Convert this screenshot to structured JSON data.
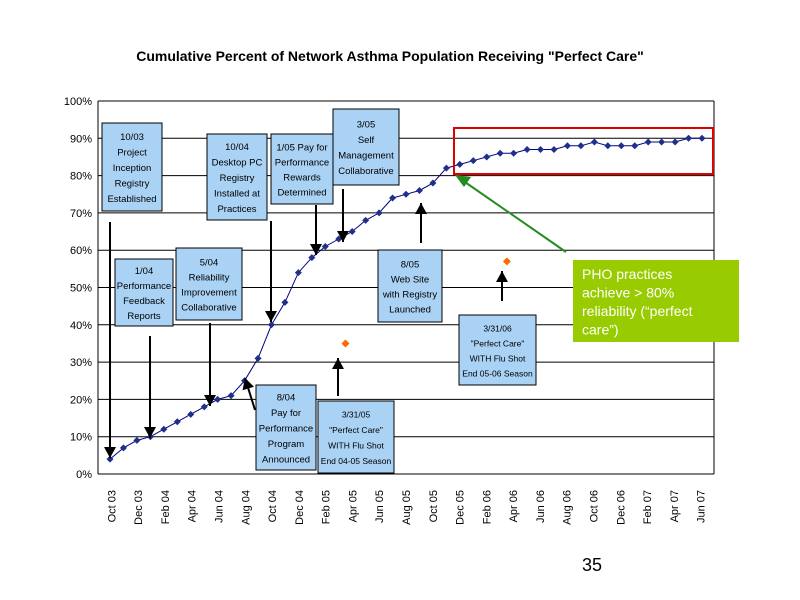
{
  "slide": {
    "page_number": "35"
  },
  "colors": {
    "line": "#00007f",
    "marker": "#1f2f8a",
    "flu_marker": "#ff6a00",
    "annotation_fill": "#a9d2f5",
    "callout_fill": "#99cc00",
    "highlight_box": "#e00000",
    "callout_arrow": "#228b22"
  },
  "chart_data": {
    "type": "line",
    "title": "Cumulative Percent of Network Asthma Population Receiving \"Perfect Care\"",
    "xlabel": "",
    "ylabel": "",
    "ylim": [
      0,
      100
    ],
    "y_ticks": [
      "0%",
      "10%",
      "20%",
      "30%",
      "40%",
      "50%",
      "60%",
      "70%",
      "80%",
      "90%",
      "100%"
    ],
    "x_ticks": [
      "Oct 03",
      "Dec 03",
      "Feb 04",
      "Apr 04",
      "Jun 04",
      "Aug 04",
      "Oct 04",
      "Dec 04",
      "Feb 05",
      "Apr 05",
      "Jun 05",
      "Aug 05",
      "Oct 05",
      "Dec 05",
      "Feb 06",
      "Apr 06",
      "Jun 06",
      "Aug 06",
      "Oct 06",
      "Dec 06",
      "Feb 07",
      "Apr 07",
      "Jun 07"
    ],
    "grid": true,
    "series": [
      {
        "x": [
          0,
          1,
          2,
          3,
          4,
          5,
          6,
          7,
          8,
          9,
          10,
          11,
          12,
          13,
          14,
          15,
          16,
          17,
          18,
          19,
          20,
          21,
          22,
          23,
          24,
          25,
          26,
          27,
          28,
          29,
          30,
          31,
          32,
          33,
          34,
          35,
          36,
          37,
          38,
          39,
          40,
          41,
          42,
          43,
          44
        ],
        "values": [
          4,
          7,
          9,
          10,
          12,
          14,
          16,
          18,
          20,
          21,
          25,
          31,
          40,
          46,
          54,
          58,
          61,
          63,
          65,
          68,
          70,
          74,
          75,
          76,
          78,
          82,
          83,
          84,
          85,
          86,
          86,
          87,
          87,
          87,
          88,
          88,
          89,
          88,
          88,
          88,
          89,
          89,
          89,
          90,
          90
        ]
      }
    ],
    "flu_points": [
      {
        "x": 17.5,
        "value": 35
      },
      {
        "x": 29.5,
        "value": 57
      }
    ]
  },
  "annotations": [
    {
      "lines": [
        "10/03",
        "Project",
        "Inception",
        "Registry",
        "Established"
      ]
    },
    {
      "lines": [
        "1/04",
        "Performance",
        "Feedback",
        "Reports"
      ]
    },
    {
      "lines": [
        "5/04",
        "Reliability",
        "Improvement",
        "Collaborative"
      ]
    },
    {
      "lines": [
        "10/04",
        "Desktop PC",
        "Registry",
        "Installed at",
        "Practices"
      ]
    },
    {
      "lines": [
        "8/04",
        "Pay for",
        "Performance",
        "Program",
        "Announced"
      ]
    },
    {
      "lines": [
        "1/05 Pay for",
        "Performance",
        "Rewards",
        "Determined"
      ]
    },
    {
      "lines": [
        "3/05",
        "Self",
        "Management",
        "Collaborative"
      ]
    },
    {
      "lines": [
        "3/31/05",
        "\"Perfect Care\"",
        "WITH Flu Shot",
        "End 04-05 Season"
      ]
    },
    {
      "lines": [
        "8/05",
        "Web Site",
        "with Registry",
        "Launched"
      ]
    },
    {
      "lines": [
        "3/31/06",
        "\"Perfect Care\"",
        "WITH Flu Shot",
        "End 05-06 Season"
      ]
    }
  ],
  "callout": {
    "lines": [
      "PHO practices",
      "achieve > 80%",
      "reliability (“perfect",
      "care”)"
    ]
  }
}
